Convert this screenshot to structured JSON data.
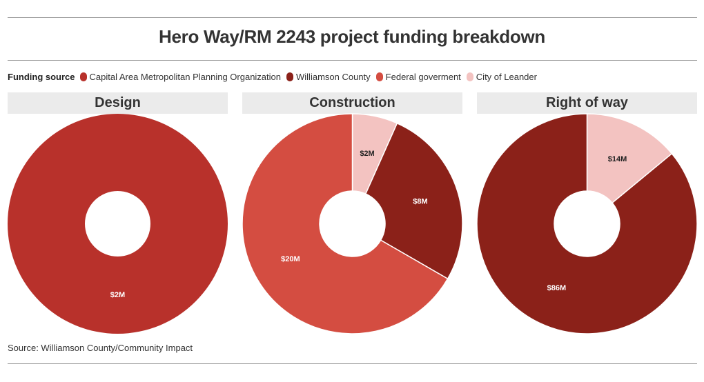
{
  "title": "Hero Way/RM 2243 project funding breakdown",
  "legend": {
    "title": "Funding source",
    "items": [
      {
        "label": "Capital Area Metropolitan Planning Organization",
        "color": "#b8312b"
      },
      {
        "label": "Williamson County",
        "color": "#8b2119"
      },
      {
        "label": "Federal goverment",
        "color": "#d44d41"
      },
      {
        "label": "City of Leander",
        "color": "#f3c3c1"
      }
    ]
  },
  "source": "Source: Williamson County/Community Impact",
  "chart_data": [
    {
      "type": "pie",
      "title": "Design",
      "slices": [
        {
          "source": "Capital Area Metropolitan Planning Organization",
          "value": 2,
          "label": "$2M",
          "color": "#b8312b"
        }
      ]
    },
    {
      "type": "pie",
      "title": "Construction",
      "slices": [
        {
          "source": "City of Leander",
          "value": 2,
          "label": "$2M",
          "color": "#f3c3c1"
        },
        {
          "source": "Williamson County",
          "value": 8,
          "label": "$8M",
          "color": "#8b2119"
        },
        {
          "source": "Federal goverment",
          "value": 20,
          "label": "$20M",
          "color": "#d44d41"
        }
      ]
    },
    {
      "type": "pie",
      "title": "Right of way",
      "slices": [
        {
          "source": "City of Leander",
          "value": 14,
          "label": "$14M",
          "color": "#f3c3c1"
        },
        {
          "source": "Williamson County",
          "value": 86,
          "label": "$86M",
          "color": "#8b2119"
        }
      ]
    }
  ]
}
